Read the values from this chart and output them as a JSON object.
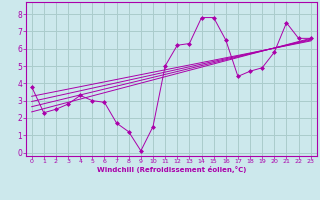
{
  "xlabel": "Windchill (Refroidissement éolien,°C)",
  "ylabel": "",
  "bg_color": "#cce8ec",
  "grid_color": "#aacccc",
  "line_color": "#aa00aa",
  "xlim": [
    -0.5,
    23.5
  ],
  "ylim": [
    -0.2,
    8.7
  ],
  "xticks": [
    0,
    1,
    2,
    3,
    4,
    5,
    6,
    7,
    8,
    9,
    10,
    11,
    12,
    13,
    14,
    15,
    16,
    17,
    18,
    19,
    20,
    21,
    22,
    23
  ],
  "yticks": [
    0,
    1,
    2,
    3,
    4,
    5,
    6,
    7,
    8
  ],
  "data_x": [
    0,
    1,
    2,
    3,
    4,
    5,
    6,
    7,
    8,
    9,
    10,
    11,
    12,
    13,
    14,
    15,
    16,
    17,
    18,
    19,
    20,
    21,
    22,
    23
  ],
  "data_y": [
    3.8,
    2.3,
    2.5,
    2.8,
    3.3,
    3.0,
    2.9,
    1.7,
    1.2,
    0.1,
    1.5,
    5.0,
    6.2,
    6.3,
    7.8,
    7.8,
    6.5,
    4.4,
    4.7,
    4.9,
    5.8,
    7.5,
    6.6,
    6.6
  ],
  "reg_lines": [
    {
      "x0": 0,
      "y0": 2.35,
      "x1": 23,
      "y1": 6.6
    },
    {
      "x0": 0,
      "y0": 2.65,
      "x1": 23,
      "y1": 6.55
    },
    {
      "x0": 0,
      "y0": 2.95,
      "x1": 23,
      "y1": 6.5
    },
    {
      "x0": 0,
      "y0": 3.25,
      "x1": 23,
      "y1": 6.45
    }
  ]
}
